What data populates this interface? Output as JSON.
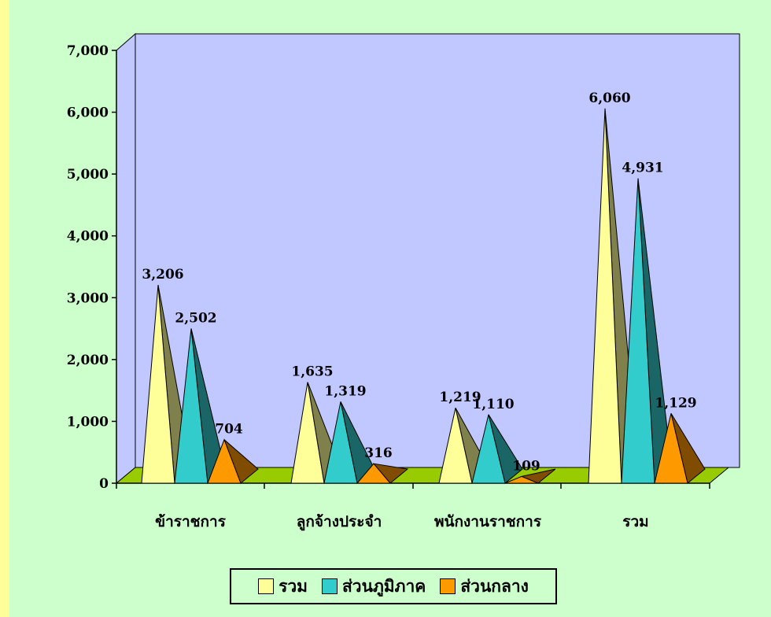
{
  "chart_data": {
    "type": "bar",
    "categories": [
      "ข้าราชการ",
      "ลูกจ้างประจำ",
      "พนักงานราชการ",
      "รวม"
    ],
    "series": [
      {
        "name": "รวม",
        "color": "#ffff99",
        "values": [
          3206,
          1635,
          1219,
          6060
        ]
      },
      {
        "name": "ส่วนภูมิภาค",
        "color": "#33cccc",
        "values": [
          2502,
          1319,
          1110,
          4931
        ]
      },
      {
        "name": "ส่วนกลาง",
        "color": "#ff9900",
        "values": [
          704,
          316,
          109,
          1129
        ]
      }
    ],
    "data_labels": [
      [
        "3,206",
        "2,502",
        "704"
      ],
      [
        "1,635",
        "1,319",
        "316"
      ],
      [
        "1,219",
        "1,110",
        "109"
      ],
      [
        "6,060",
        "4,931",
        "1,129"
      ]
    ],
    "y_ticks": [
      "0",
      "1,000",
      "2,000",
      "3,000",
      "4,000",
      "5,000",
      "6,000",
      "7,000"
    ],
    "ylim": [
      0,
      7000
    ],
    "legend_position": "bottom",
    "colors": {
      "background": "#ccffcc",
      "plot_wall": "#c0c8ff",
      "floor": "#99cc00"
    }
  },
  "legend": [
    {
      "label": "รวม",
      "color": "#ffff99"
    },
    {
      "label": "ส่วนภูมิภาค",
      "color": "#33cccc"
    },
    {
      "label": "ส่วนกลาง",
      "color": "#ff9900"
    }
  ]
}
